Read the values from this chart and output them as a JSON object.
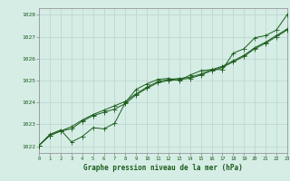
{
  "x": [
    0,
    1,
    2,
    3,
    4,
    5,
    6,
    7,
    8,
    9,
    10,
    11,
    12,
    13,
    14,
    15,
    16,
    17,
    18,
    19,
    20,
    21,
    22,
    23
  ],
  "line1": [
    1022.05,
    1022.55,
    1022.75,
    1022.2,
    1022.45,
    1022.85,
    1022.8,
    1023.05,
    1024.0,
    1024.6,
    1024.85,
    1025.05,
    1025.1,
    1025.0,
    1025.25,
    1025.45,
    1025.5,
    1025.5,
    1026.25,
    1026.45,
    1026.95,
    1027.05,
    1027.3,
    1028.0
  ],
  "line2": [
    1022.05,
    1022.5,
    1022.7,
    1022.9,
    1023.2,
    1023.45,
    1023.65,
    1023.85,
    1024.05,
    1024.4,
    1024.7,
    1024.95,
    1025.05,
    1025.1,
    1025.15,
    1025.3,
    1025.5,
    1025.65,
    1025.9,
    1026.15,
    1026.5,
    1026.75,
    1027.05,
    1027.35
  ],
  "line3": [
    1022.05,
    1022.5,
    1022.7,
    1022.8,
    1023.15,
    1023.4,
    1023.55,
    1023.7,
    1023.95,
    1024.35,
    1024.65,
    1024.9,
    1025.0,
    1025.05,
    1025.1,
    1025.25,
    1025.45,
    1025.6,
    1025.85,
    1026.1,
    1026.45,
    1026.7,
    1027.0,
    1027.3
  ],
  "line_color": "#1a5c1a",
  "bg_color": "#d6ede6",
  "grid_color": "#b8d4cc",
  "xlabel": "Graphe pression niveau de la mer (hPa)",
  "ylabel_min": 1022,
  "ylabel_max": 1028,
  "xlim": [
    0,
    23
  ],
  "ylim": [
    1021.7,
    1028.3
  ]
}
